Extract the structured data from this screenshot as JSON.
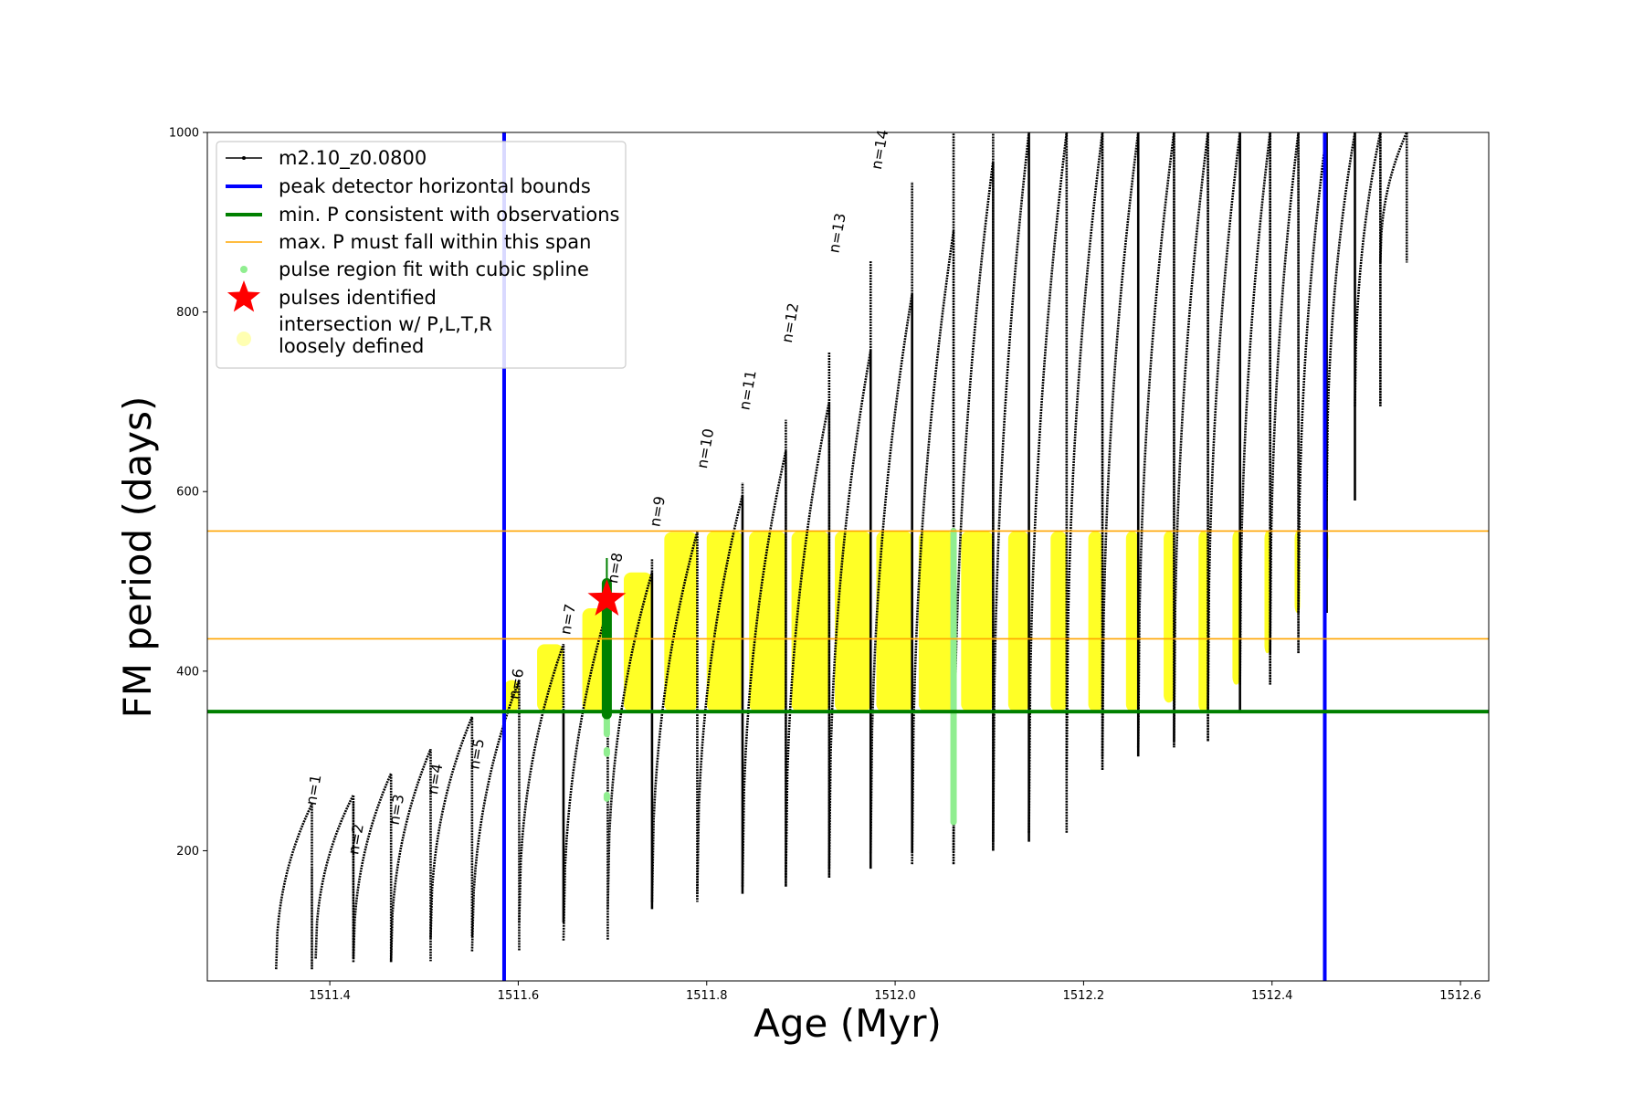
{
  "chart_data": {
    "type": "line",
    "xlabel": "Age (Myr)",
    "ylabel": "FM period (days)",
    "xlim": [
      1511.27,
      1512.63
    ],
    "ylim": [
      55,
      1000
    ],
    "x_ticks": [
      1511.4,
      1511.6,
      1511.8,
      1512.0,
      1512.2,
      1512.4,
      1512.6
    ],
    "x_tick_labels": [
      "1511.4",
      "1511.6",
      "1511.8",
      "1512.0",
      "1512.2",
      "1512.4",
      "1512.6"
    ],
    "y_ticks": [
      200,
      400,
      600,
      800,
      1000
    ],
    "y_tick_labels": [
      "200",
      "400",
      "600",
      "800",
      "1000"
    ],
    "grid": false,
    "legend_position": "top-left",
    "colors": {
      "model": "#000000",
      "bounds": "#0000ff",
      "min_p": "#008000",
      "max_p": "#ffa500",
      "spline": "#90ee90",
      "pulse": "#ff0000",
      "loose": "#ffff00"
    },
    "legend": [
      {
        "key": "model",
        "label": "m2.10_z0.0800"
      },
      {
        "key": "bounds",
        "label": "peak detector horizontal bounds"
      },
      {
        "key": "min_p",
        "label": "min. P consistent with observations"
      },
      {
        "key": "max_p",
        "label": "max. P must fall within this span"
      },
      {
        "key": "spline",
        "label": "pulse region fit with cubic spline"
      },
      {
        "key": "pulse",
        "label": "pulses identified"
      },
      {
        "key": "loose",
        "label": "intersection w/ P,L,T,R\nloosely defined"
      }
    ],
    "vertical_bounds": [
      1511.585,
      1512.456
    ],
    "min_p_line": 355,
    "max_p_lines": [
      436,
      556
    ],
    "pulse_identified": {
      "x": 1511.694,
      "y": 480
    },
    "pulse_labels": [
      {
        "text": "n=1",
        "x": 1511.385,
        "y": 250
      },
      {
        "text": "n=2",
        "x": 1511.43,
        "y": 195
      },
      {
        "text": "n=3",
        "x": 1511.473,
        "y": 228
      },
      {
        "text": "n=4",
        "x": 1511.514,
        "y": 262
      },
      {
        "text": "n=5",
        "x": 1511.558,
        "y": 290
      },
      {
        "text": "n=6",
        "x": 1511.6,
        "y": 368
      },
      {
        "text": "n=7",
        "x": 1511.655,
        "y": 440
      },
      {
        "text": "n=8",
        "x": 1511.705,
        "y": 497
      },
      {
        "text": "n=9",
        "x": 1511.75,
        "y": 560
      },
      {
        "text": "n=10",
        "x": 1511.8,
        "y": 625
      },
      {
        "text": "n=11",
        "x": 1511.845,
        "y": 690
      },
      {
        "text": "n=12",
        "x": 1511.89,
        "y": 765
      },
      {
        "text": "n=13",
        "x": 1511.94,
        "y": 865
      },
      {
        "text": "n=14",
        "x": 1511.985,
        "y": 958
      }
    ],
    "series": {
      "model": {
        "cycles": [
          {
            "start": 1511.343,
            "end": 1511.381,
            "min": 68,
            "peak": 252,
            "spike": 180
          },
          {
            "start": 1511.385,
            "end": 1511.425,
            "min": 80,
            "peak": 262,
            "spike": 255
          },
          {
            "start": 1511.425,
            "end": 1511.465,
            "min": 76,
            "peak": 286
          },
          {
            "start": 1511.465,
            "end": 1511.507,
            "min": 77,
            "peak": 313
          },
          {
            "start": 1511.507,
            "end": 1511.551,
            "min": 103,
            "peak": 349
          },
          {
            "start": 1511.551,
            "end": 1511.601,
            "min": 88,
            "peak": 390
          },
          {
            "start": 1511.601,
            "end": 1511.648,
            "min": 120,
            "peak": 430,
            "spike": 355
          },
          {
            "start": 1511.648,
            "end": 1511.695,
            "min": 100,
            "peak": 470
          },
          {
            "start": 1511.695,
            "end": 1511.742,
            "min": 135,
            "peak": 510,
            "spike": 525
          },
          {
            "start": 1511.742,
            "end": 1511.79,
            "min": 143,
            "peak": 555
          },
          {
            "start": 1511.79,
            "end": 1511.838,
            "min": 152,
            "peak": 596,
            "spike": 610
          },
          {
            "start": 1511.838,
            "end": 1511.884,
            "min": 160,
            "peak": 645,
            "spike": 680
          },
          {
            "start": 1511.884,
            "end": 1511.93,
            "min": 170,
            "peak": 700,
            "spike": 755
          },
          {
            "start": 1511.93,
            "end": 1511.974,
            "min": 180,
            "peak": 757,
            "spike": 857
          },
          {
            "start": 1511.974,
            "end": 1512.018,
            "min": 197,
            "peak": 820,
            "spike": 945
          },
          {
            "start": 1512.018,
            "end": 1512.062,
            "min": 185,
            "peak": 890,
            "spike": 1000
          },
          {
            "start": 1512.062,
            "end": 1512.104,
            "min": 200,
            "peak": 968,
            "spike": 1000
          },
          {
            "start": 1512.104,
            "end": 1512.142,
            "min": 210,
            "peak": 1000,
            "spike": 1000
          },
          {
            "start": 1512.142,
            "end": 1512.182,
            "min": 220,
            "peak": 1000,
            "spike": 1000
          },
          {
            "start": 1512.182,
            "end": 1512.22,
            "min": 290,
            "peak": 1000,
            "spike": 1000
          },
          {
            "start": 1512.22,
            "end": 1512.258,
            "min": 305,
            "peak": 1000,
            "spike": 1000
          },
          {
            "start": 1512.258,
            "end": 1512.296,
            "min": 315,
            "peak": 1000,
            "spike": 1000
          },
          {
            "start": 1512.296,
            "end": 1512.332,
            "min": 322,
            "peak": 1000,
            "spike": 1000
          },
          {
            "start": 1512.332,
            "end": 1512.366,
            "min": 355,
            "peak": 1000,
            "spike": 1000
          },
          {
            "start": 1512.366,
            "end": 1512.398,
            "min": 385,
            "peak": 1000,
            "spike": 1000
          },
          {
            "start": 1512.398,
            "end": 1512.428,
            "min": 420,
            "peak": 1000,
            "spike": 1000
          },
          {
            "start": 1512.428,
            "end": 1512.458,
            "min": 465,
            "peak": 1000,
            "spike": 1000
          },
          {
            "start": 1512.458,
            "end": 1512.488,
            "min": 590,
            "peak": 1000,
            "spike": 1000
          },
          {
            "start": 1512.488,
            "end": 1512.515,
            "min": 695,
            "peak": 1000,
            "spike": 1000
          },
          {
            "start": 1512.515,
            "end": 1512.543,
            "min": 855,
            "peak": 1000
          }
        ]
      },
      "loose_spans": [
        {
          "x0": 1511.585,
          "x1": 1511.601,
          "y0": 355,
          "y1": 390
        },
        {
          "x0": 1511.62,
          "x1": 1511.648,
          "y0": 355,
          "y1": 430
        },
        {
          "x0": 1511.668,
          "x1": 1511.695,
          "y0": 355,
          "y1": 470
        },
        {
          "x0": 1511.712,
          "x1": 1511.742,
          "y0": 355,
          "y1": 510
        },
        {
          "x0": 1511.755,
          "x1": 1511.79,
          "y0": 355,
          "y1": 555
        },
        {
          "x0": 1511.8,
          "x1": 1511.838,
          "y0": 355,
          "y1": 556
        },
        {
          "x0": 1511.845,
          "x1": 1511.884,
          "y0": 355,
          "y1": 556
        },
        {
          "x0": 1511.89,
          "x1": 1511.93,
          "y0": 355,
          "y1": 556
        },
        {
          "x0": 1511.936,
          "x1": 1511.974,
          "y0": 355,
          "y1": 556
        },
        {
          "x0": 1511.98,
          "x1": 1512.018,
          "y0": 355,
          "y1": 556
        },
        {
          "x0": 1512.025,
          "x1": 1512.062,
          "y0": 355,
          "y1": 556
        },
        {
          "x0": 1512.07,
          "x1": 1512.104,
          "y0": 355,
          "y1": 556
        },
        {
          "x0": 1512.12,
          "x1": 1512.142,
          "y0": 355,
          "y1": 556
        },
        {
          "x0": 1512.165,
          "x1": 1512.182,
          "y0": 355,
          "y1": 556
        },
        {
          "x0": 1512.205,
          "x1": 1512.22,
          "y0": 355,
          "y1": 556
        },
        {
          "x0": 1512.245,
          "x1": 1512.258,
          "y0": 355,
          "y1": 556
        },
        {
          "x0": 1512.285,
          "x1": 1512.296,
          "y0": 365,
          "y1": 556
        },
        {
          "x0": 1512.322,
          "x1": 1512.332,
          "y0": 355,
          "y1": 556
        },
        {
          "x0": 1512.358,
          "x1": 1512.366,
          "y0": 385,
          "y1": 556
        },
        {
          "x0": 1512.392,
          "x1": 1512.398,
          "y0": 420,
          "y1": 556
        },
        {
          "x0": 1512.424,
          "x1": 1512.428,
          "y0": 465,
          "y1": 556
        },
        {
          "x0": 1512.454,
          "x1": 1512.458,
          "y0": 520,
          "y1": 556
        }
      ],
      "spline_points": [
        {
          "x": 1511.694,
          "y0": 330,
          "y1": 500
        },
        {
          "x": 1511.694,
          "y0": 258,
          "y1": 262
        },
        {
          "x": 1511.694,
          "y0": 308,
          "y1": 312
        },
        {
          "x": 1512.062,
          "y0": 232,
          "y1": 556
        }
      ],
      "fit_segments": [
        {
          "x": 1511.694,
          "y0": 352,
          "y1": 498
        }
      ]
    }
  }
}
